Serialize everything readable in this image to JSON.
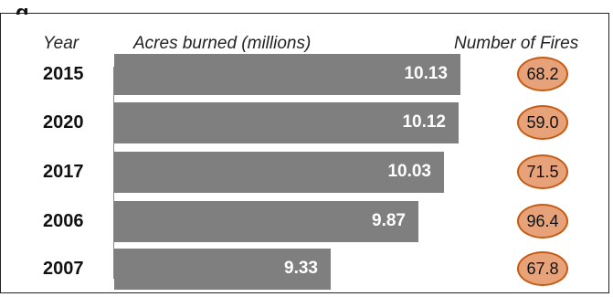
{
  "chart_data": {
    "type": "bar",
    "orientation": "horizontal",
    "headers": {
      "year": "Year",
      "acres": "Acres burned (millions)",
      "fires": "Number of Fires"
    },
    "title_fragment": "g",
    "categories": [
      "2015",
      "2020",
      "2017",
      "2006",
      "2007"
    ],
    "series": [
      {
        "name": "Acres burned (millions)",
        "values": [
          10.13,
          10.12,
          10.03,
          9.87,
          9.33
        ]
      },
      {
        "name": "Number of Fires",
        "values": [
          68.2,
          59.0,
          71.5,
          96.4,
          67.8
        ]
      }
    ],
    "value_labels": [
      "10.13",
      "10.12",
      "10.03",
      "9.87",
      "9.33"
    ],
    "fire_labels": [
      "68.2",
      "59.0",
      "71.5",
      "96.4",
      "67.8"
    ],
    "colors": {
      "bar": "#7f7f7f",
      "fire_fill": "#e8a27a",
      "fire_border": "#c55a11"
    }
  }
}
